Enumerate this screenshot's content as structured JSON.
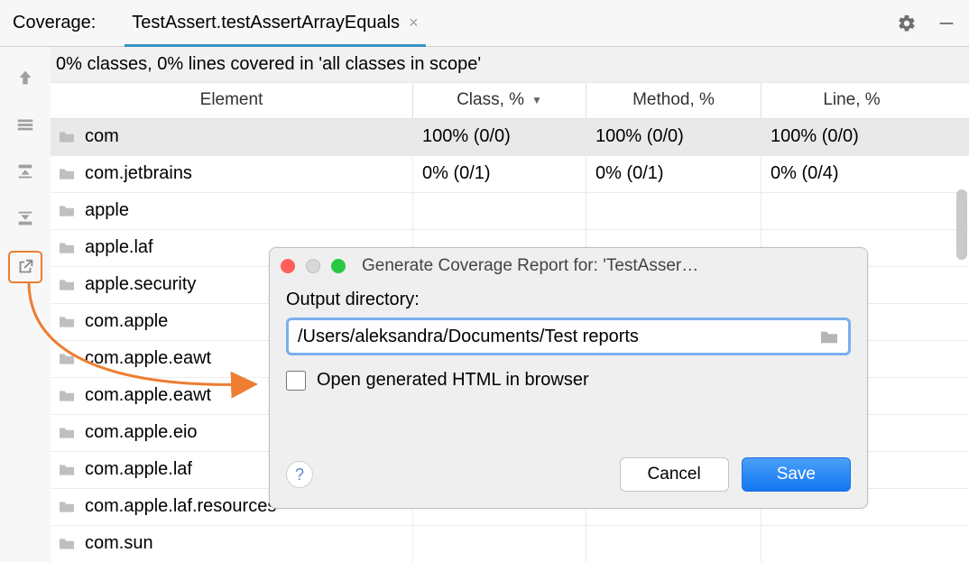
{
  "header": {
    "title": "Coverage:",
    "tab_label": "TestAssert.testAssertArrayEquals"
  },
  "summary_text": "0% classes, 0% lines covered in 'all classes in scope'",
  "columns": {
    "element": "Element",
    "class_pct": "Class, %",
    "method_pct": "Method, %",
    "line_pct": "Line, %"
  },
  "rows": [
    {
      "name": "com",
      "class": "100% (0/0)",
      "method": "100% (0/0)",
      "line": "100% (0/0)",
      "selected": true
    },
    {
      "name": "com.jetbrains",
      "class": "0% (0/1)",
      "method": "0% (0/1)",
      "line": "0% (0/4)"
    },
    {
      "name": "apple"
    },
    {
      "name": "apple.laf"
    },
    {
      "name": "apple.security"
    },
    {
      "name": "com.apple"
    },
    {
      "name": "com.apple.eawt"
    },
    {
      "name": "com.apple.eawt"
    },
    {
      "name": "com.apple.eio"
    },
    {
      "name": "com.apple.laf"
    },
    {
      "name": "com.apple.laf.resources"
    },
    {
      "name": "com.sun"
    }
  ],
  "dialog": {
    "title": "Generate Coverage Report for: 'TestAsser…",
    "label": "Output directory:",
    "path": "/Users/aleksandra/Documents/Test reports",
    "checkbox_label": "Open generated HTML in browser",
    "cancel": "Cancel",
    "save": "Save"
  },
  "colors": {
    "accent": "#3592C4",
    "highlight": "#ed7d31",
    "primary_btn": "#1277f2"
  }
}
